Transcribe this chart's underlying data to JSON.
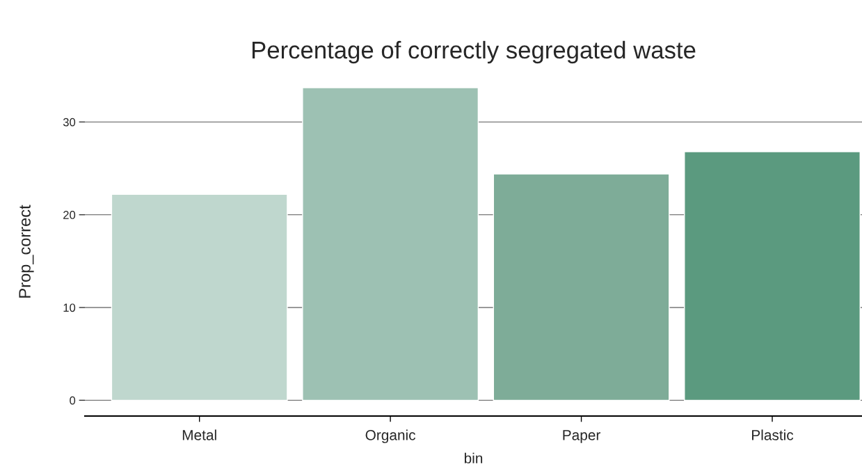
{
  "chart_data": {
    "type": "bar",
    "title": "Percentage of correctly segregated waste",
    "xlabel": "bin",
    "ylabel": "Prop_correct",
    "categories": [
      "Metal",
      "Organic",
      "Paper",
      "Plastic"
    ],
    "values": [
      22.2,
      33.7,
      24.4,
      26.8
    ],
    "colors": [
      "#bfd7ce",
      "#9dc1b3",
      "#7eac98",
      "#5b9a7f"
    ],
    "ylim": [
      -1.7,
      33.7
    ],
    "yticks": [
      0,
      10,
      20,
      30
    ],
    "grid": "y",
    "legend": false
  }
}
